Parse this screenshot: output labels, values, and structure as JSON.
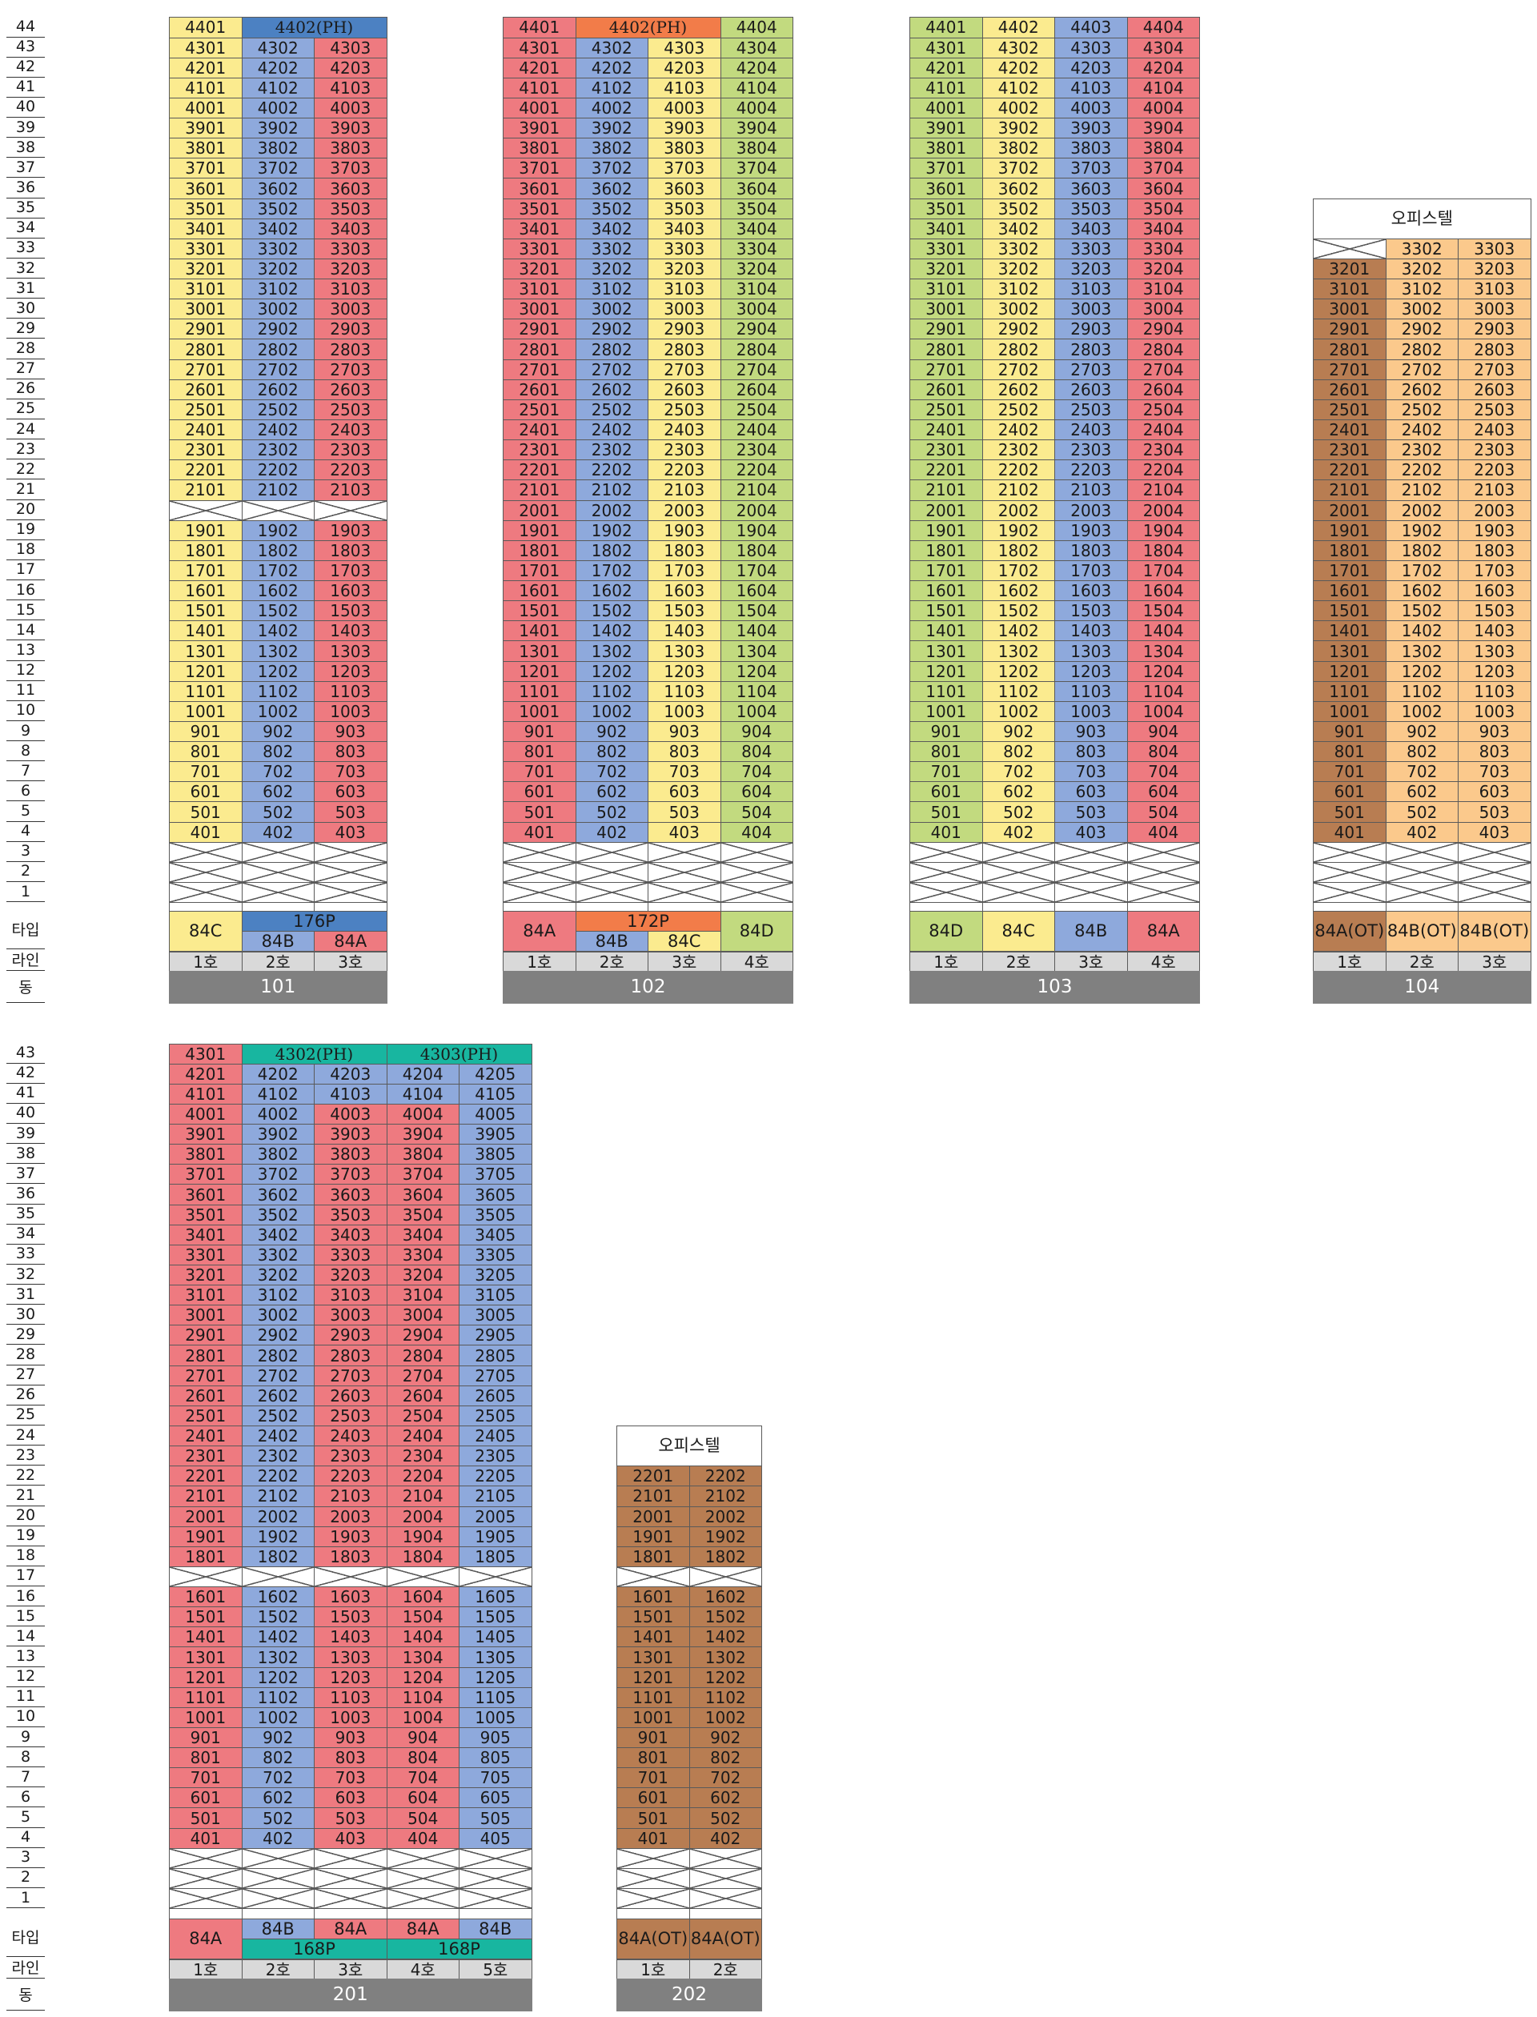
{
  "colors": {
    "yellow": "#fbeb8f",
    "red": "#ee7a80",
    "blue": "#8ea9dc",
    "green": "#c2da7f",
    "steel": "#4c81c2",
    "orange": "#f27c49",
    "teal": "#18b6a0",
    "brown": "#b87d52",
    "peach": "#fbc98c",
    "line_bg": "#d9d9d9",
    "dong_bg": "#808080"
  },
  "row_labels": {
    "type": "타입",
    "line": "라인",
    "dong": "동"
  },
  "officetel_label": "오피스텔",
  "buildings": [
    {
      "dong": "101",
      "lines": [
        "1호",
        "2호",
        "3호"
      ],
      "colors": [
        "yellow",
        "blue",
        "red"
      ],
      "top_floor": 44,
      "void_floors": [
        20,
        1,
        2,
        3
      ],
      "overrides": {
        "44": [
          {
            "label": "4401",
            "color": "yellow"
          },
          {
            "label": "4402(PH)",
            "color": "steel",
            "span": 2,
            "ph": true
          }
        ]
      },
      "types": [
        {
          "label": "84C",
          "color": "yellow"
        },
        {
          "label": "84B",
          "color": "blue"
        },
        {
          "label": "84A",
          "color": "red"
        }
      ],
      "type_groups": [
        {
          "label": "176P",
          "start": 1,
          "span": 2,
          "color": "steel",
          "pos": "top"
        }
      ]
    },
    {
      "dong": "102",
      "lines": [
        "1호",
        "2호",
        "3호",
        "4호"
      ],
      "colors": [
        "red",
        "blue",
        "yellow",
        "green"
      ],
      "top_floor": 44,
      "void_floors": [
        1,
        2,
        3
      ],
      "overrides": {
        "44": [
          {
            "label": "4401",
            "color": "red"
          },
          {
            "label": "4402(PH)",
            "color": "orange",
            "span": 2,
            "ph": true
          },
          {
            "label": "4404",
            "color": "green"
          }
        ]
      },
      "types": [
        {
          "label": "84A",
          "color": "red"
        },
        {
          "label": "84B",
          "color": "blue"
        },
        {
          "label": "84C",
          "color": "yellow"
        },
        {
          "label": "84D",
          "color": "green"
        }
      ],
      "type_groups": [
        {
          "label": "172P",
          "start": 1,
          "span": 2,
          "color": "orange",
          "pos": "top"
        }
      ]
    },
    {
      "dong": "103",
      "lines": [
        "1호",
        "2호",
        "3호",
        "4호"
      ],
      "colors": [
        "green",
        "yellow",
        "blue",
        "red"
      ],
      "top_floor": 44,
      "void_floors": [
        1,
        2,
        3
      ],
      "overrides": {},
      "types": [
        {
          "label": "84D",
          "color": "green"
        },
        {
          "label": "84C",
          "color": "yellow"
        },
        {
          "label": "84B",
          "color": "blue"
        },
        {
          "label": "84A",
          "color": "red"
        }
      ],
      "type_groups": []
    },
    {
      "dong": "104",
      "lines": [
        "1호",
        "2호",
        "3호"
      ],
      "colors": [
        "brown",
        "peach",
        "peach"
      ],
      "top_floor": 33,
      "void_floors": [
        1,
        2,
        3
      ],
      "overrides": {
        "33": [
          {
            "void": true
          },
          {
            "label": "3302",
            "color": "peach"
          },
          {
            "label": "3303",
            "color": "peach"
          }
        ]
      },
      "officetel_header": true,
      "types": [
        {
          "label": "84A(OT)",
          "color": "brown"
        },
        {
          "label": "84B(OT)",
          "color": "peach"
        },
        {
          "label": "84B(OT)",
          "color": "peach"
        }
      ],
      "type_groups": []
    },
    {
      "dong": "201",
      "lines": [
        "1호",
        "2호",
        "3호",
        "4호",
        "5호"
      ],
      "colors": [
        "red",
        "blue",
        "red",
        "red",
        "blue"
      ],
      "top_floor": 43,
      "void_floors": [
        17,
        1,
        2,
        3
      ],
      "overrides": {
        "43": [
          {
            "label": "4301",
            "color": "red"
          },
          {
            "label": "4302(PH)",
            "color": "teal",
            "span": 2,
            "ph": true
          },
          {
            "label": "4303(PH)",
            "color": "teal",
            "span": 2,
            "ph": true
          }
        ],
        "42": [
          {
            "label": "4201",
            "color": "red"
          },
          {
            "label": "4202",
            "color": "blue"
          },
          {
            "label": "4203",
            "color": "blue"
          },
          {
            "label": "4204",
            "color": "blue"
          },
          {
            "label": "4205",
            "color": "blue"
          }
        ],
        "41": [
          {
            "label": "4101",
            "color": "red"
          },
          {
            "label": "4102",
            "color": "blue"
          },
          {
            "label": "4103",
            "color": "blue"
          },
          {
            "label": "4104",
            "color": "blue"
          },
          {
            "label": "4105",
            "color": "blue"
          }
        ]
      },
      "types": [
        {
          "label": "84A",
          "color": "red"
        },
        {
          "label": "84B",
          "color": "blue"
        },
        {
          "label": "84A",
          "color": "red"
        },
        {
          "label": "84A",
          "color": "red"
        },
        {
          "label": "84B",
          "color": "blue"
        }
      ],
      "type_groups": [
        {
          "label": "168P",
          "start": 1,
          "span": 2,
          "color": "teal",
          "pos": "bottom"
        },
        {
          "label": "168P",
          "start": 3,
          "span": 2,
          "color": "teal",
          "pos": "bottom"
        }
      ]
    },
    {
      "dong": "202",
      "lines": [
        "1호",
        "2호"
      ],
      "colors": [
        "brown",
        "brown"
      ],
      "top_floor": 22,
      "void_floors": [
        17,
        1,
        2,
        3
      ],
      "overrides": {},
      "officetel_header": true,
      "types": [
        {
          "label": "84A(OT)",
          "color": "brown"
        },
        {
          "label": "84A(OT)",
          "color": "brown"
        }
      ],
      "type_groups": []
    }
  ],
  "floor_axes": [
    {
      "top_floor": 44
    },
    {
      "top_floor": 43
    }
  ]
}
